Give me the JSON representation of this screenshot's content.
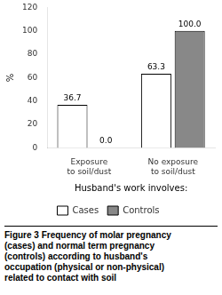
{
  "chart_data": {
    "type": "bar",
    "categories": [
      "Exposure\nto soil/dust",
      "No exposure\nto soil/dust"
    ],
    "series": [
      {
        "name": "Cases",
        "color": "#ffffff",
        "values": [
          36.7,
          63.3
        ]
      },
      {
        "name": "Controls",
        "color": "#888888",
        "values": [
          0.0,
          100.0
        ],
        "value_labels": [
          "0.0",
          "100.0"
        ]
      }
    ],
    "ylabel": "%",
    "xlabel": "Husband's work involves:",
    "annotations": [
      "Figure 3 Frequency of molar pregnancy\n(cases) and normal term pregnancy\n(controls) according to husband's\noccupation (physical or non-physical)\nrelated to contact with soil"
    ],
    "ylim": [
      0,
      120
    ],
    "yticks": [
      0,
      20,
      40,
      60,
      80,
      100,
      120
    ],
    "grid": false,
    "legend": "bottom",
    "data_labels": true
  }
}
